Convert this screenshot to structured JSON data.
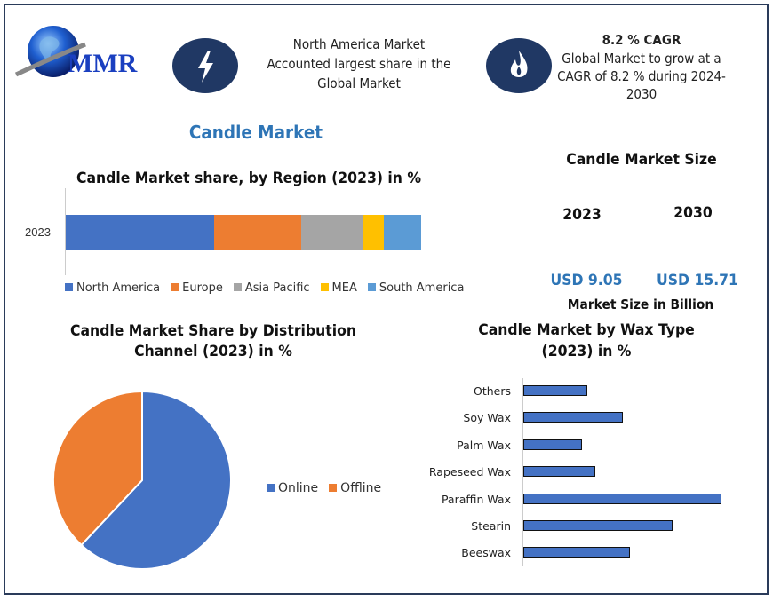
{
  "logo": {
    "text": "MMR"
  },
  "highlights": [
    {
      "icon": "lightning-bolt-icon",
      "text_lines": [
        "North America Market",
        "Accounted largest share in the",
        "Global Market"
      ]
    },
    {
      "icon": "flame-icon",
      "heading": "8.2 % CAGR",
      "text_lines": [
        "Global Market to grow at a",
        "CAGR of 8.2 % during 2024-",
        "2030"
      ]
    }
  ],
  "main_title": "Candle Market",
  "market_size": {
    "title": "Candle Market Size",
    "years": [
      "2023",
      "2030"
    ],
    "values": [
      "USD 9.05",
      "USD 15.71"
    ],
    "caption": "Market Size in Billion"
  },
  "colors": {
    "navy": "#203864",
    "accent": "#2e75b6"
  },
  "chart_data": [
    {
      "type": "bar",
      "orientation": "horizontal-stacked",
      "title": "Candle Market share, by Region (2023) in %",
      "categories": [
        "2023"
      ],
      "series": [
        {
          "name": "North America",
          "values": [
            41.7
          ],
          "color": "#4472c4"
        },
        {
          "name": "Europe",
          "values": [
            24.5
          ],
          "color": "#ed7d31"
        },
        {
          "name": "Asia Pacific",
          "values": [
            17.5
          ],
          "color": "#a5a5a5"
        },
        {
          "name": "MEA",
          "values": [
            5.8
          ],
          "color": "#ffc000"
        },
        {
          "name": "South America",
          "values": [
            10.5
          ],
          "color": "#5b9bd5"
        }
      ],
      "legend": "bottom"
    },
    {
      "type": "pie",
      "title_lines": [
        "Candle Market Share by Distribution",
        "Channel (2023) in %"
      ],
      "slices": [
        {
          "name": "Online",
          "value": 62,
          "color": "#4472c4"
        },
        {
          "name": "Offline",
          "value": 38,
          "color": "#ed7d31"
        }
      ],
      "legend": "right"
    },
    {
      "type": "bar",
      "orientation": "horizontal",
      "title_lines": [
        "Candle Market by Wax Type",
        "(2023) in %"
      ],
      "categories": [
        "Others",
        "Soy Wax",
        "Palm Wax",
        "Rapeseed Wax",
        "Paraffin Wax",
        "Stearin",
        "Beeswax"
      ],
      "values": [
        8.5,
        13.3,
        7.7,
        9.5,
        26.7,
        20.0,
        14.3
      ],
      "color": "#4472c4"
    }
  ]
}
